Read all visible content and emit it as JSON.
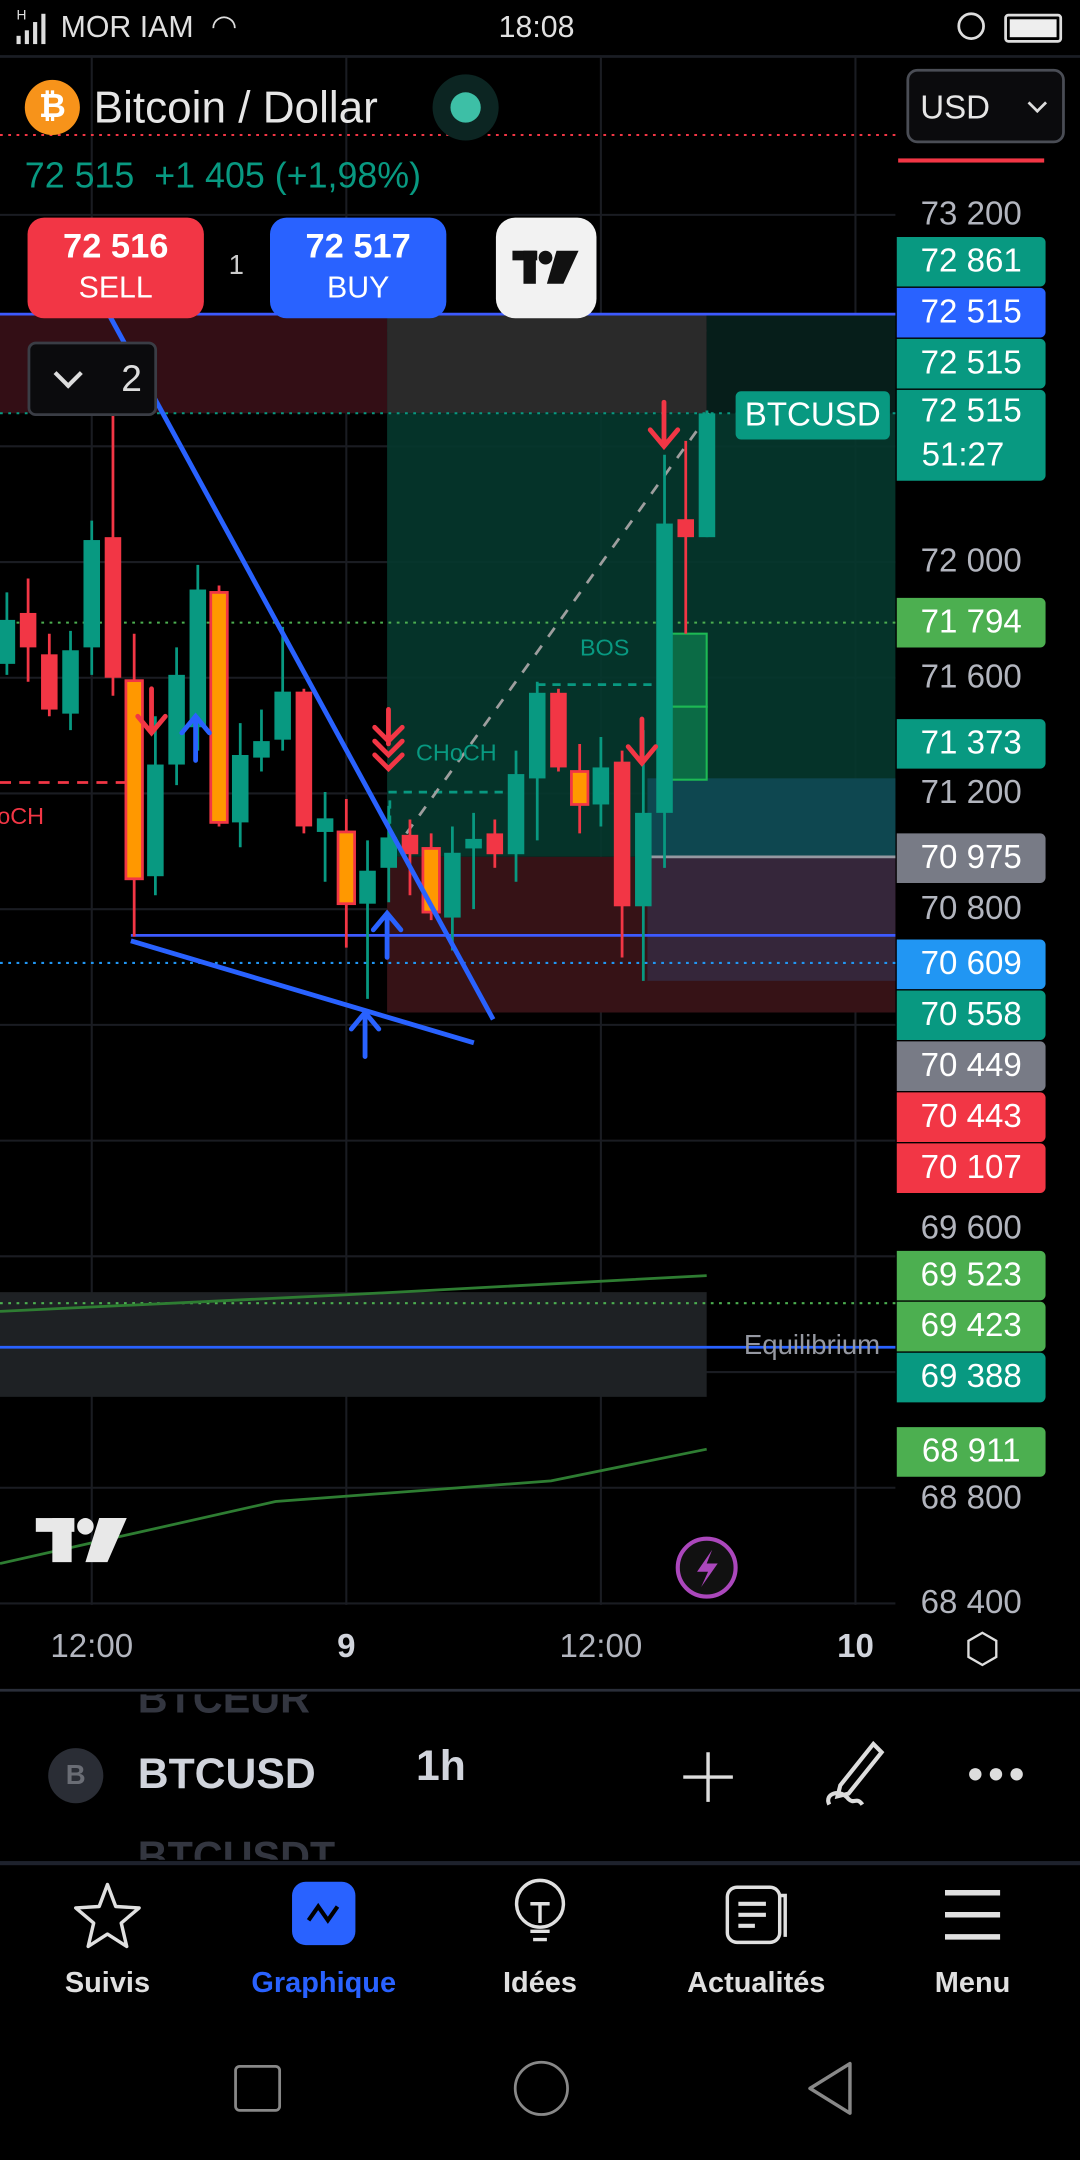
{
  "status_bar": {
    "carrier": "MOR IAM",
    "network": "H",
    "time": "18:08"
  },
  "header": {
    "title": "Bitcoin / Dollar",
    "last_price": "72 515",
    "change": "+1 405 (+1,98%)",
    "currency": "USD",
    "sell": {
      "price": "72 516",
      "label": "SELL"
    },
    "buy": {
      "price": "72 517",
      "label": "BUY"
    },
    "quantity": "1",
    "indicator_count": "2"
  },
  "colors": {
    "up": "#089981",
    "down": "#f23645",
    "highlight": "#ff9800",
    "accent": "#2962ff",
    "bg": "#000000"
  },
  "chart_data": {
    "type": "candlestick",
    "symbol": "BTCUSD",
    "interval": "1h",
    "x_ticks": [
      {
        "label": "12:00",
        "index": 4,
        "bold": false
      },
      {
        "label": "9",
        "index": 16,
        "bold": true
      },
      {
        "label": "12:00",
        "index": 28,
        "bold": false
      },
      {
        "label": "10",
        "index": 40,
        "bold": true
      }
    ],
    "y_ticks": [
      73200,
      72000,
      71600,
      71200,
      70800,
      69600,
      68800,
      68400
    ],
    "grid": true,
    "candles": [
      {
        "o": 71648,
        "h": 71895,
        "l": 71610,
        "c": 71800
      },
      {
        "o": 71824,
        "h": 71943,
        "l": 71586,
        "c": 71705
      },
      {
        "o": 71681,
        "h": 71752,
        "l": 71467,
        "c": 71490
      },
      {
        "o": 71476,
        "h": 71762,
        "l": 71419,
        "c": 71695
      },
      {
        "o": 71705,
        "h": 72143,
        "l": 71610,
        "c": 72076
      },
      {
        "o": 72086,
        "h": 72705,
        "l": 71538,
        "c": 71600
      },
      {
        "o": 71590,
        "h": 71752,
        "l": 70705,
        "c": 70905,
        "hl": true
      },
      {
        "o": 70914,
        "h": 71467,
        "l": 70848,
        "c": 71300
      },
      {
        "o": 71300,
        "h": 71705,
        "l": 71229,
        "c": 71610
      },
      {
        "o": 71429,
        "h": 71990,
        "l": 71348,
        "c": 71905
      },
      {
        "o": 71895,
        "h": 71919,
        "l": 71086,
        "c": 71100,
        "hl": true
      },
      {
        "o": 71100,
        "h": 71443,
        "l": 71014,
        "c": 71333
      },
      {
        "o": 71324,
        "h": 71490,
        "l": 71276,
        "c": 71381
      },
      {
        "o": 71386,
        "h": 71776,
        "l": 71348,
        "c": 71552
      },
      {
        "o": 71552,
        "h": 71562,
        "l": 71062,
        "c": 71086
      },
      {
        "o": 71067,
        "h": 71205,
        "l": 70895,
        "c": 71114
      },
      {
        "o": 71067,
        "h": 71181,
        "l": 70667,
        "c": 70819,
        "hl": true
      },
      {
        "o": 70819,
        "h": 71038,
        "l": 70490,
        "c": 70933
      },
      {
        "o": 70943,
        "h": 71157,
        "l": 70824,
        "c": 71048
      },
      {
        "o": 71057,
        "h": 71110,
        "l": 70848,
        "c": 70990
      },
      {
        "o": 71010,
        "h": 71062,
        "l": 70762,
        "c": 70790,
        "hl": true
      },
      {
        "o": 70771,
        "h": 71086,
        "l": 70657,
        "c": 70995
      },
      {
        "o": 71010,
        "h": 71133,
        "l": 70800,
        "c": 71043
      },
      {
        "o": 71062,
        "h": 71110,
        "l": 70943,
        "c": 70990
      },
      {
        "o": 70990,
        "h": 71348,
        "l": 70895,
        "c": 71267
      },
      {
        "o": 71252,
        "h": 71586,
        "l": 71038,
        "c": 71548
      },
      {
        "o": 71548,
        "h": 71562,
        "l": 71276,
        "c": 71290
      },
      {
        "o": 71276,
        "h": 71371,
        "l": 71062,
        "c": 71162,
        "hl": true
      },
      {
        "o": 71162,
        "h": 71395,
        "l": 71086,
        "c": 71290
      },
      {
        "o": 71310,
        "h": 71348,
        "l": 70633,
        "c": 70810
      },
      {
        "o": 70810,
        "h": 71419,
        "l": 70552,
        "c": 71133
      },
      {
        "o": 71133,
        "h": 72371,
        "l": 70943,
        "c": 72133
      },
      {
        "o": 72148,
        "h": 72419,
        "l": 71752,
        "c": 72086
      },
      {
        "o": 72086,
        "h": 72524,
        "l": 72086,
        "c": 72514
      }
    ],
    "annotations": {
      "choch": "CHoCH",
      "choch_left": "oCH",
      "bos": "BOS",
      "equilibrium": "Equilibrium"
    },
    "price_tags": [
      {
        "value": "72 861",
        "color": "#089981"
      },
      {
        "value": "72 515",
        "color": "#2962ff"
      },
      {
        "value": "72 515",
        "color": "#089981"
      },
      {
        "value": "72 515",
        "color": "#089981",
        "sub": "51:27"
      },
      {
        "value": "71 794",
        "color": "#4caf50"
      },
      {
        "value": "71 373",
        "color": "#089981"
      },
      {
        "value": "70 975",
        "color": "#787b86"
      },
      {
        "value": "70 609",
        "color": "#2196f3"
      },
      {
        "value": "70 558",
        "color": "#089981"
      },
      {
        "value": "70 449",
        "color": "#787b86"
      },
      {
        "value": "70 443",
        "color": "#f23645"
      },
      {
        "value": "70 107",
        "color": "#f23645"
      },
      {
        "value": "69 523",
        "color": "#4caf50"
      },
      {
        "value": "69 423",
        "color": "#4caf50"
      },
      {
        "value": "69 388",
        "color": "#089981"
      },
      {
        "value": "68 911",
        "color": "#4caf50"
      }
    ],
    "symbol_tag": "BTCUSD"
  },
  "y_tick_labels": [
    "73 200",
    "72 000",
    "71 600",
    "71 200",
    "70 800",
    "69 600",
    "68 800",
    "68 400"
  ],
  "toolbar": {
    "symbol_prev": "BTCEUR",
    "symbol": "BTCUSD",
    "symbol_next": "BTCUSDT",
    "symbol_badge": "B",
    "interval": "1h"
  },
  "nav": [
    {
      "label": "Suivis",
      "icon": "star-icon"
    },
    {
      "label": "Graphique",
      "icon": "chart-icon",
      "active": true
    },
    {
      "label": "Idées",
      "icon": "lightbulb-icon"
    },
    {
      "label": "Actualités",
      "icon": "news-icon"
    },
    {
      "label": "Menu",
      "icon": "menu-icon"
    }
  ]
}
